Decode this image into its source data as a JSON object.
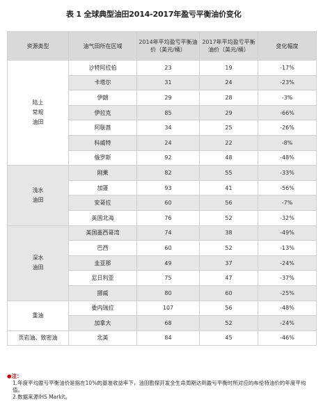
{
  "title": "表 1 全球典型油田2014-2017年盈亏平衡油价变化",
  "headers": [
    "资源类型",
    "油气田所在区域",
    "2014年平均盈亏平衡油价（美元/桶）",
    "2017年平均盈亏平衡油价（美元/桶）",
    "变化幅度"
  ],
  "groups": [
    {
      "category": "陆上\n常规\n油田",
      "shade": false,
      "rows": [
        {
          "region": "沙特阿拉伯",
          "p2014": "23",
          "p2017": "19",
          "change": "-17%"
        },
        {
          "region": "卡塔尔",
          "p2014": "31",
          "p2017": "24",
          "change": "-23%"
        },
        {
          "region": "伊朗",
          "p2014": "29",
          "p2017": "28",
          "change": "-3%"
        },
        {
          "region": "伊拉克",
          "p2014": "85",
          "p2017": "29",
          "change": "-66%"
        },
        {
          "region": "阿联酋",
          "p2014": "34",
          "p2017": "25",
          "change": "-26%"
        },
        {
          "region": "科威特",
          "p2014": "24",
          "p2017": "22",
          "change": "-8%"
        },
        {
          "region": "俄罗斯",
          "p2014": "92",
          "p2017": "48",
          "change": "-48%"
        }
      ]
    },
    {
      "category": "浅水\n油田",
      "shade": true,
      "rows": [
        {
          "region": "刚果",
          "p2014": "82",
          "p2017": "55",
          "change": "-33%"
        },
        {
          "region": "加蓬",
          "p2014": "93",
          "p2017": "41",
          "change": "-56%"
        },
        {
          "region": "安哥拉",
          "p2014": "60",
          "p2017": "56",
          "change": "-7%"
        },
        {
          "region": "英国北海",
          "p2014": "76",
          "p2017": "52",
          "change": "-32%"
        }
      ]
    },
    {
      "category": "深水\n油田",
      "shade": true,
      "rows": [
        {
          "region": "美国墨西哥湾",
          "p2014": "74",
          "p2017": "38",
          "change": "-49%"
        },
        {
          "region": "巴西",
          "p2014": "60",
          "p2017": "52",
          "change": "-13%"
        },
        {
          "region": "圭亚那",
          "p2014": "49",
          "p2017": "37",
          "change": "-24%"
        },
        {
          "region": "尼日利亚",
          "p2014": "75",
          "p2017": "47",
          "change": "-37%"
        },
        {
          "region": "挪威",
          "p2014": "80",
          "p2017": "60",
          "change": "-25%"
        }
      ]
    },
    {
      "category": "重油",
      "shade": false,
      "rows": [
        {
          "region": "委内瑞拉",
          "p2014": "107",
          "p2017": "56",
          "change": "-48%"
        },
        {
          "region": "加拿大",
          "p2014": "68",
          "p2017": "52",
          "change": "-24%"
        }
      ]
    },
    {
      "category": "页岩油、致密油",
      "shade": false,
      "rows": [
        {
          "region": "北美",
          "p2014": "84",
          "p2017": "45",
          "change": "-46%"
        }
      ]
    }
  ],
  "notes": {
    "header": "注：",
    "items": [
      "1.年度平均盈亏平衡油价是指在10%的基准收益率下，油田勘探开发全生命周期达到盈亏平衡时所对应的布伦特油价的年度平均值。",
      "2.数据来源IHS Markit。"
    ]
  }
}
